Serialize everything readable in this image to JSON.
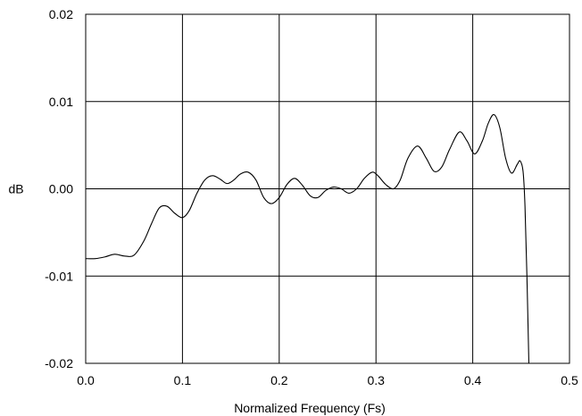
{
  "chart_data": {
    "type": "line",
    "title": "",
    "xlabel": "Normalized Frequency (Fs)",
    "ylabel": "dB",
    "xlim": [
      0.0,
      0.5
    ],
    "ylim": [
      -0.02,
      0.02
    ],
    "grid": true,
    "x_ticks": [
      0.0,
      0.1,
      0.2,
      0.3,
      0.4,
      0.5
    ],
    "y_ticks": [
      -0.02,
      -0.01,
      0.0,
      0.01,
      0.02
    ],
    "x_tick_labels": [
      "0.0",
      "0.1",
      "0.2",
      "0.3",
      "0.4",
      "0.5"
    ],
    "y_tick_labels": [
      "-0.02",
      "-0.01",
      "0.00",
      "0.01",
      "0.02"
    ],
    "colors": {
      "line": "#000000",
      "grid": "#000000",
      "frame": "#000000"
    },
    "series": [
      {
        "x": [
          0.0,
          0.01,
          0.02,
          0.03,
          0.04,
          0.05,
          0.06,
          0.068,
          0.076,
          0.084,
          0.092,
          0.1,
          0.107,
          0.115,
          0.123,
          0.131,
          0.139,
          0.146,
          0.153,
          0.16,
          0.168,
          0.176,
          0.184,
          0.192,
          0.2,
          0.208,
          0.216,
          0.224,
          0.232,
          0.24,
          0.248,
          0.256,
          0.264,
          0.272,
          0.28,
          0.288,
          0.296,
          0.302,
          0.31,
          0.318,
          0.325,
          0.333,
          0.343,
          0.352,
          0.36,
          0.368,
          0.376,
          0.386,
          0.394,
          0.402,
          0.41,
          0.416,
          0.422,
          0.428,
          0.434,
          0.44,
          0.446,
          0.449,
          0.452,
          0.454,
          0.456,
          0.458
        ],
        "y": [
          -0.008,
          -0.008,
          -0.0078,
          -0.0075,
          -0.0077,
          -0.0076,
          -0.006,
          -0.004,
          -0.0022,
          -0.002,
          -0.0028,
          -0.0033,
          -0.0025,
          -0.0005,
          0.001,
          0.0015,
          0.0011,
          0.0006,
          0.001,
          0.0017,
          0.0019,
          0.001,
          -0.001,
          -0.0017,
          -0.001,
          0.0005,
          0.0012,
          0.0004,
          -0.0008,
          -0.001,
          -0.0002,
          0.0002,
          0.0,
          -0.0005,
          0.0,
          0.0012,
          0.0019,
          0.0015,
          0.0005,
          0.0,
          0.001,
          0.0035,
          0.0049,
          0.0035,
          0.002,
          0.0025,
          0.0045,
          0.0065,
          0.0055,
          0.004,
          0.0055,
          0.0075,
          0.0085,
          0.007,
          0.0035,
          0.0018,
          0.0028,
          0.0032,
          0.002,
          -0.002,
          -0.01,
          -0.02
        ]
      }
    ]
  }
}
